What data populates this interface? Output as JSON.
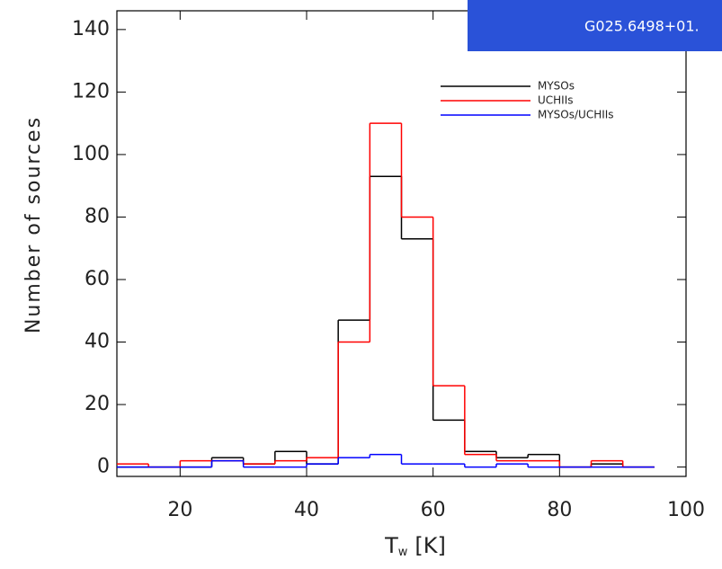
{
  "chart_data": {
    "type": "histogram",
    "xlabel": {
      "text": "T",
      "subscript": "w",
      "unit": "[K]"
    },
    "ylabel": "Number of sources",
    "bins": [
      10,
      15,
      20,
      25,
      30,
      35,
      40,
      45,
      50,
      55,
      60,
      65,
      70,
      75,
      80,
      85,
      90,
      95
    ],
    "series": [
      {
        "name": "MYSOs",
        "color": "#000000",
        "values": [
          0,
          0,
          0,
          3,
          1,
          5,
          1,
          47,
          93,
          73,
          15,
          5,
          3,
          4,
          0,
          1,
          0
        ]
      },
      {
        "name": "UCHIIs",
        "color": "#ff0000",
        "values": [
          1,
          0,
          2,
          2,
          1,
          2,
          3,
          40,
          110,
          80,
          26,
          4,
          2,
          2,
          0,
          2,
          0
        ]
      },
      {
        "name": "MYSOs/UCHIIs",
        "color": "#0000ff",
        "values": [
          0,
          0,
          0,
          2,
          0,
          0,
          1,
          3,
          4,
          1,
          1,
          0,
          1,
          0,
          0,
          0,
          0
        ]
      }
    ],
    "xlim": [
      10,
      100
    ],
    "ylim": [
      -3,
      146
    ],
    "xticks": [
      20,
      40,
      60,
      80,
      100
    ],
    "yticks": [
      0,
      20,
      40,
      60,
      80,
      100,
      120,
      140
    ],
    "legend": "upper right"
  },
  "overlay_text": "G025.6498+01."
}
